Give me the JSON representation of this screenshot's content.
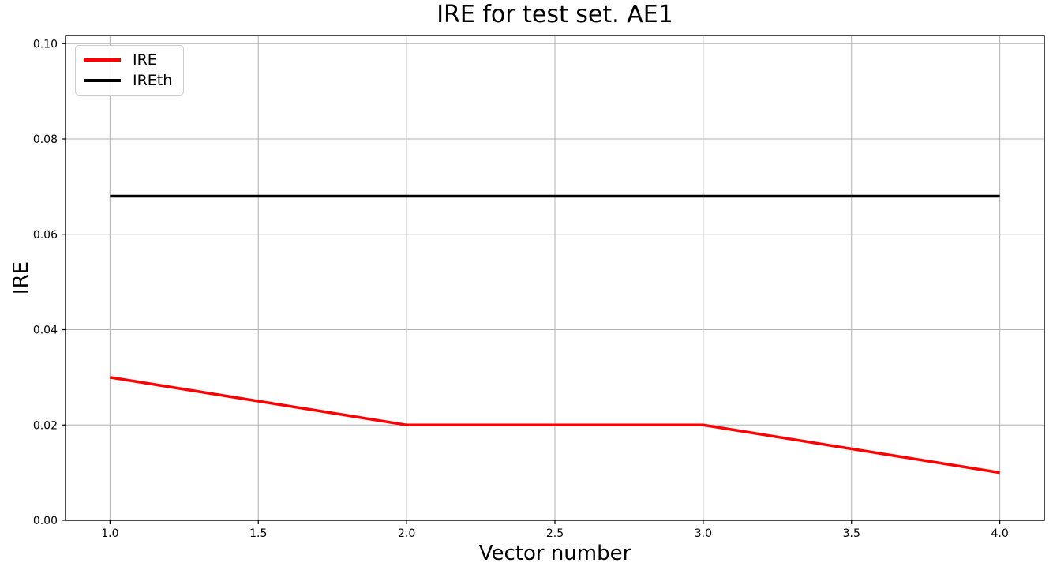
{
  "chart_data": {
    "type": "line",
    "title": "IRE for test set. AE1",
    "xlabel": "Vector number",
    "ylabel": "IRE",
    "xlim": [
      0.85,
      4.15
    ],
    "ylim": [
      0,
      0.1017
    ],
    "x_ticks": [
      1.0,
      1.5,
      2.0,
      2.5,
      3.0,
      3.5,
      4.0
    ],
    "x_tick_labels": [
      "1.0",
      "1.5",
      "2.0",
      "2.5",
      "3.0",
      "3.5",
      "4.0"
    ],
    "y_ticks": [
      0.0,
      0.02,
      0.04,
      0.06,
      0.08,
      0.1
    ],
    "y_tick_labels": [
      "0.00",
      "0.02",
      "0.04",
      "0.06",
      "0.08",
      "0.10"
    ],
    "grid": true,
    "grid_color": "#b0b0b0",
    "spine_color": "#000000",
    "background_color": "#ffffff",
    "legend_position": "upper left",
    "series": [
      {
        "name": "IRE",
        "color": "#ff0000",
        "x": [
          1,
          2,
          3,
          4
        ],
        "y": [
          0.03,
          0.02,
          0.02,
          0.01
        ]
      },
      {
        "name": "IREth",
        "color": "#000000",
        "x": [
          1,
          4
        ],
        "y": [
          0.068,
          0.068
        ]
      }
    ]
  }
}
